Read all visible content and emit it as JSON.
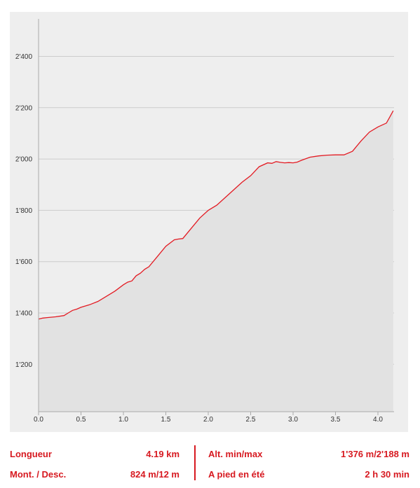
{
  "chart_data": {
    "type": "area",
    "title": "",
    "xlabel": "",
    "ylabel": "",
    "xlim": [
      0,
      4.2
    ],
    "ylim": [
      1100,
      2500
    ],
    "x_ticks": [
      "0.0",
      "0.5",
      "1.0",
      "1.5",
      "2.0",
      "2.5",
      "3.0",
      "3.5",
      "4.0"
    ],
    "y_ticks": [
      "1'200",
      "1'400",
      "1'600",
      "1'800",
      "2'000",
      "2'200",
      "2'400"
    ],
    "grid": "horizontal",
    "colors": {
      "line": "#e31b23",
      "fill": "#e2e2e2",
      "panel": "#eeeeee",
      "grid": "#cccccc"
    },
    "series": [
      {
        "x": [
          0.0,
          0.05,
          0.1,
          0.2,
          0.3,
          0.35,
          0.4,
          0.45,
          0.5,
          0.6,
          0.7,
          0.8,
          0.9,
          1.0,
          1.05,
          1.1,
          1.15,
          1.2,
          1.25,
          1.3,
          1.4,
          1.5,
          1.6,
          1.65,
          1.7,
          1.8,
          1.9,
          2.0,
          2.1,
          2.2,
          2.3,
          2.4,
          2.5,
          2.6,
          2.7,
          2.75,
          2.8,
          2.85,
          2.9,
          2.95,
          3.0,
          3.05,
          3.1,
          3.2,
          3.3,
          3.4,
          3.5,
          3.6,
          3.7,
          3.8,
          3.9,
          4.0,
          4.1,
          4.15,
          4.18
        ],
        "y": [
          1376,
          1380,
          1382,
          1385,
          1390,
          1400,
          1410,
          1415,
          1422,
          1432,
          1445,
          1465,
          1485,
          1510,
          1520,
          1525,
          1545,
          1555,
          1570,
          1580,
          1620,
          1660,
          1685,
          1688,
          1690,
          1730,
          1770,
          1800,
          1820,
          1850,
          1880,
          1910,
          1935,
          1970,
          1985,
          1983,
          1990,
          1987,
          1985,
          1986,
          1985,
          1988,
          1995,
          2007,
          2012,
          2015,
          2016,
          2016,
          2030,
          2070,
          2105,
          2125,
          2140,
          2170,
          2188
        ]
      }
    ]
  },
  "stats": {
    "length_label": "Longueur",
    "length_value": "4.19 km",
    "ascent_label": "Mont. / Desc.",
    "ascent_value": "824 m/12 m",
    "altitude_label": "Alt. min/max",
    "altitude_value": "1'376 m/2'188 m",
    "duration_label": "A pied en été",
    "duration_value": "2 h 30 min"
  }
}
